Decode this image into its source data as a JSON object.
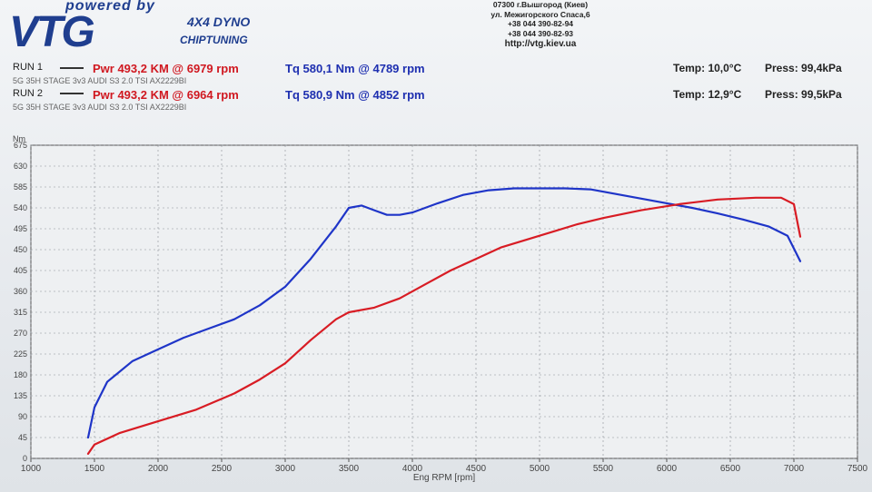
{
  "header": {
    "logo_powered": "powered by",
    "logo_brand": "VTG",
    "logo_dyno": "4X4 DYNO",
    "logo_chip": "CHIPTUNING",
    "address_lines": [
      "07300 г.Вышгород (Киев)",
      "ул. Межигорского Спаса,6",
      "+38 044 390-82-94",
      "+38 044 390-82-93"
    ],
    "url": "http://vtg.kiev.ua"
  },
  "runs": [
    {
      "name": "RUN 1",
      "pwr": "Pwr  493,2 KM @ 6979 rpm",
      "tq": "Tq 580,1 Nm @ 4789 rpm",
      "desc": "5G 35H  STAGE 3v3 AUDI S3 2.0 TSI AX2229BI",
      "temp": "Temp: 10,0°C",
      "press": "Press: 99,4kPa"
    },
    {
      "name": "RUN 2",
      "pwr": "Pwr  493,2 KM @ 6964 rpm",
      "tq": "Tq 580,9 Nm @ 4852 rpm",
      "desc": "5G 35H  STAGE 3v3 AUDI S3 2.0 TSI AX2229BI",
      "temp": "Temp: 12,9°C",
      "press": "Press: 99,5kPa"
    }
  ],
  "colors": {
    "power": "#d81c24",
    "torque": "#1f35c8",
    "grid": "#8a8f96",
    "axis": "#555555"
  },
  "chart_data": {
    "type": "line",
    "xlabel": "Eng RPM [rpm]",
    "ylabel": "Nm",
    "xlim": [
      1000,
      7500
    ],
    "ylim": [
      0,
      675
    ],
    "x_ticks": [
      1000,
      1500,
      2000,
      2500,
      3000,
      3500,
      4000,
      4500,
      5000,
      5500,
      6000,
      6500,
      7000,
      7500
    ],
    "y_ticks": [
      0,
      45,
      90,
      135,
      180,
      225,
      270,
      315,
      360,
      405,
      450,
      495,
      540,
      585,
      630,
      675
    ],
    "grid": true,
    "series": [
      {
        "kind": "torque",
        "color": "#1f35c8",
        "x": [
          1450,
          1500,
          1600,
          1800,
          2000,
          2200,
          2400,
          2600,
          2800,
          3000,
          3200,
          3400,
          3500,
          3600,
          3700,
          3800,
          3900,
          4000,
          4200,
          4400,
          4600,
          4800,
          5000,
          5200,
          5400,
          5600,
          5800,
          6000,
          6200,
          6400,
          6600,
          6800,
          6950,
          7050
        ],
        "y": [
          45,
          110,
          165,
          210,
          235,
          260,
          280,
          300,
          330,
          370,
          430,
          500,
          540,
          545,
          535,
          525,
          525,
          530,
          550,
          568,
          578,
          582,
          582,
          582,
          580,
          570,
          560,
          550,
          540,
          528,
          515,
          500,
          480,
          425
        ]
      },
      {
        "kind": "power",
        "color": "#d81c24",
        "x": [
          1450,
          1500,
          1700,
          2000,
          2300,
          2600,
          2800,
          3000,
          3200,
          3400,
          3500,
          3700,
          3900,
          4100,
          4300,
          4500,
          4700,
          5000,
          5300,
          5500,
          5800,
          6100,
          6400,
          6700,
          6900,
          7000,
          7050
        ],
        "y": [
          10,
          30,
          55,
          80,
          105,
          140,
          170,
          205,
          255,
          300,
          315,
          325,
          345,
          375,
          405,
          430,
          455,
          480,
          505,
          518,
          535,
          548,
          558,
          562,
          562,
          548,
          478
        ]
      }
    ]
  }
}
